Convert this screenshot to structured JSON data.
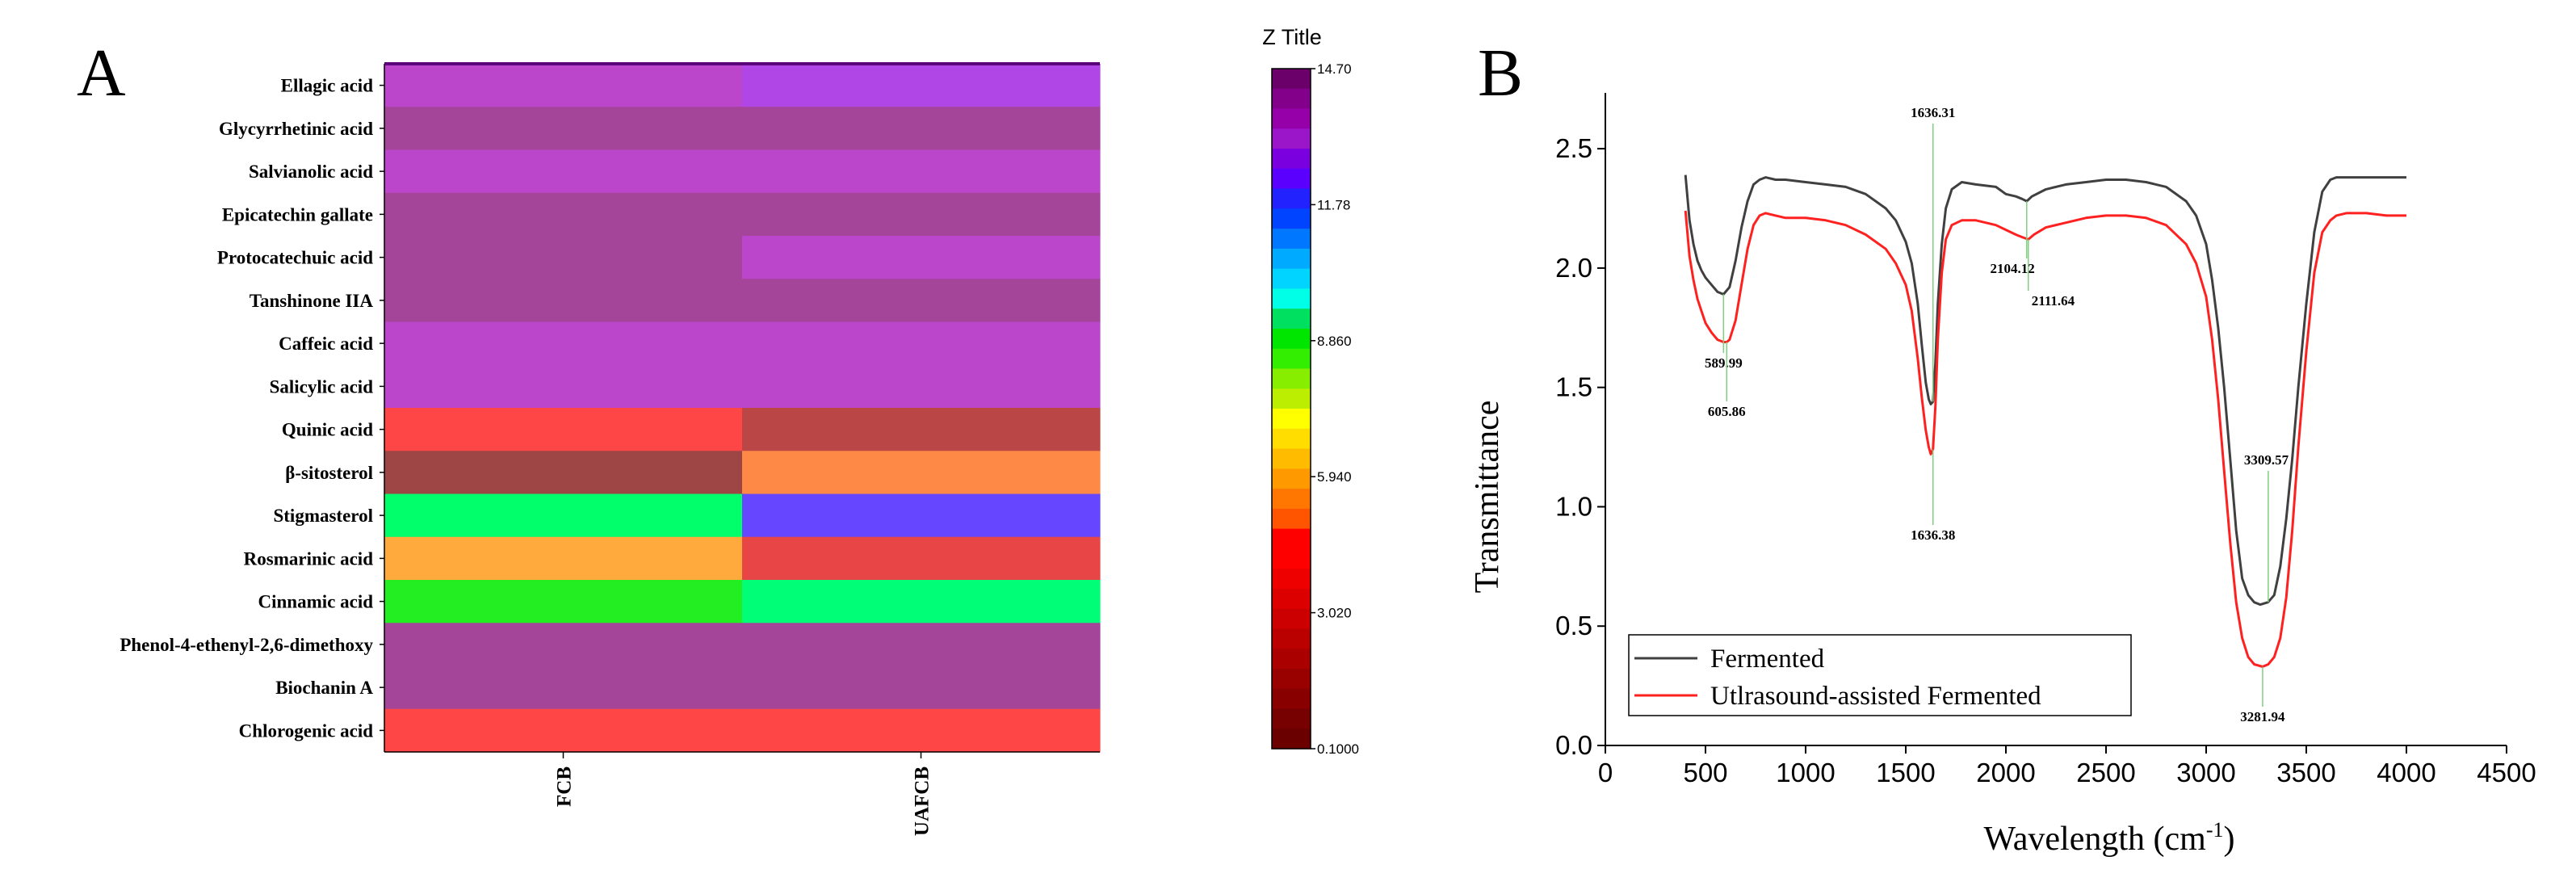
{
  "chart_data": [
    {
      "type": "heatmap",
      "panel_label": "A",
      "rows": [
        "Ellagic acid",
        "Glycyrrhetinic acid",
        "Salvianolic acid",
        "Epicatechin gallate",
        "Protocatechuic acid",
        "Tanshinone IIA",
        "Caffeic acid",
        "Salicylic acid",
        "Quinic acid",
        "β-sitosterol",
        "Stigmasterol",
        "Rosmarinic acid",
        "Cinnamic acid",
        "Phenol-4-ethenyl-2,6-dimethoxy",
        "Biochanin A",
        "Chlorogenic acid"
      ],
      "columns": [
        "FCB",
        "UAFCB"
      ],
      "cell_colors": [
        [
          "#bb46cc",
          "#b146e6"
        ],
        [
          "#a54599",
          "#a54599"
        ],
        [
          "#bb46cc",
          "#bb46cc"
        ],
        [
          "#a54599",
          "#a54599"
        ],
        [
          "#a54599",
          "#bb46cc"
        ],
        [
          "#a54599",
          "#a54599"
        ],
        [
          "#bb46cc",
          "#bb46cc"
        ],
        [
          "#bb46cc",
          "#bb46cc"
        ],
        [
          "#fe4646",
          "#ba4646"
        ],
        [
          "#9e4646",
          "#fe8846"
        ],
        [
          "#00ff6a",
          "#6646ff"
        ],
        [
          "#ffaa3c",
          "#e84646"
        ],
        [
          "#22ee22",
          "#00ff76"
        ],
        [
          "#a54599",
          "#a54599"
        ],
        [
          "#a54599",
          "#a54599"
        ],
        [
          "#ff4646",
          "#ff4646"
        ]
      ],
      "colorbar": {
        "title": "Z Title",
        "min": 0.1,
        "max": 14.7,
        "tick_labels": [
          "14.70",
          "11.78",
          "8.860",
          "5.940",
          "3.020",
          "0.1000"
        ],
        "tick_values": [
          14.7,
          11.78,
          8.86,
          5.94,
          3.02,
          0.1
        ],
        "colors": [
          "#6b006b",
          "#82008a",
          "#9500a8",
          "#9b15c9",
          "#7a00e0",
          "#5a00ff",
          "#2222ff",
          "#0044ff",
          "#0077ff",
          "#00aaff",
          "#00d4ff",
          "#00ffe6",
          "#00e060",
          "#00e600",
          "#33ee00",
          "#88ee00",
          "#bbee00",
          "#ffff00",
          "#ffdd00",
          "#ffbb00",
          "#ff9900",
          "#ff7700",
          "#ff5500",
          "#ff0000",
          "#ff0000",
          "#ee0000",
          "#dd0000",
          "#cc0000",
          "#bb0000",
          "#aa0000",
          "#990000",
          "#880000",
          "#770000",
          "#6a0000"
        ]
      }
    },
    {
      "type": "line",
      "panel_label": "B",
      "xlabel": "Wavelength (cm",
      "xlabel_sup": "-1",
      "xlabel_end": ")",
      "ylabel": "Transmittance",
      "xlim": [
        0,
        4500
      ],
      "ylim": [
        0.0,
        2.7
      ],
      "xticks": [
        0,
        500,
        1000,
        1500,
        2000,
        2500,
        3000,
        3500,
        4000,
        4500
      ],
      "yticks": [
        0.0,
        0.5,
        1.0,
        1.5,
        2.0,
        2.5
      ],
      "xtick_labels": [
        "0",
        "500",
        "1000",
        "1500",
        "2000",
        "2500",
        "3000",
        "3500",
        "4000",
        "4500"
      ],
      "ytick_labels": [
        "0.0",
        "0.5",
        "1.0",
        "1.5",
        "2.0",
        "2.5"
      ],
      "series": [
        {
          "name": "Fermented",
          "color": "#404040",
          "x": [
            400,
            420,
            440,
            460,
            480,
            500,
            530,
            560,
            590,
            620,
            650,
            680,
            710,
            740,
            770,
            800,
            850,
            900,
            1000,
            1100,
            1200,
            1300,
            1400,
            1450,
            1500,
            1530,
            1560,
            1580,
            1600,
            1615,
            1625,
            1636,
            1648,
            1660,
            1680,
            1700,
            1730,
            1780,
            1850,
            1950,
            2000,
            2050,
            2080,
            2104,
            2130,
            2200,
            2300,
            2400,
            2500,
            2600,
            2700,
            2800,
            2900,
            2950,
            3000,
            3030,
            3060,
            3090,
            3120,
            3150,
            3180,
            3210,
            3240,
            3270,
            3309,
            3340,
            3370,
            3400,
            3430,
            3460,
            3500,
            3540,
            3580,
            3620,
            3650,
            3700,
            3800,
            3900,
            4000
          ],
          "y": [
            2.39,
            2.2,
            2.1,
            2.03,
            1.99,
            1.96,
            1.93,
            1.9,
            1.89,
            1.92,
            2.03,
            2.17,
            2.28,
            2.35,
            2.37,
            2.38,
            2.37,
            2.37,
            2.36,
            2.35,
            2.34,
            2.31,
            2.25,
            2.2,
            2.11,
            2.02,
            1.85,
            1.68,
            1.52,
            1.45,
            1.43,
            1.44,
            1.6,
            1.85,
            2.1,
            2.25,
            2.33,
            2.36,
            2.35,
            2.34,
            2.31,
            2.3,
            2.29,
            2.28,
            2.3,
            2.33,
            2.35,
            2.36,
            2.37,
            2.37,
            2.36,
            2.34,
            2.28,
            2.22,
            2.1,
            1.95,
            1.75,
            1.5,
            1.2,
            0.9,
            0.7,
            0.63,
            0.6,
            0.59,
            0.6,
            0.63,
            0.75,
            0.95,
            1.2,
            1.5,
            1.85,
            2.15,
            2.32,
            2.37,
            2.38,
            2.38,
            2.38,
            2.38,
            2.38
          ]
        },
        {
          "name": "Utlrasound-assisted Fermented",
          "color": "#ff2020",
          "x": [
            400,
            420,
            440,
            460,
            480,
            500,
            530,
            560,
            590,
            606,
            620,
            650,
            680,
            710,
            740,
            770,
            800,
            850,
            900,
            1000,
            1100,
            1200,
            1300,
            1400,
            1450,
            1500,
            1530,
            1560,
            1580,
            1600,
            1615,
            1625,
            1636,
            1648,
            1660,
            1680,
            1700,
            1730,
            1780,
            1850,
            1950,
            2000,
            2050,
            2080,
            2112,
            2140,
            2200,
            2300,
            2400,
            2500,
            2600,
            2700,
            2800,
            2900,
            2950,
            3000,
            3030,
            3060,
            3090,
            3120,
            3150,
            3180,
            3210,
            3240,
            3282,
            3310,
            3340,
            3370,
            3400,
            3430,
            3460,
            3500,
            3540,
            3580,
            3620,
            3650,
            3700,
            3800,
            3900,
            4000
          ],
          "y": [
            2.24,
            2.05,
            1.95,
            1.87,
            1.82,
            1.77,
            1.73,
            1.7,
            1.69,
            1.69,
            1.7,
            1.78,
            1.93,
            2.08,
            2.18,
            2.22,
            2.23,
            2.22,
            2.21,
            2.21,
            2.2,
            2.18,
            2.14,
            2.08,
            2.02,
            1.93,
            1.82,
            1.62,
            1.46,
            1.32,
            1.25,
            1.22,
            1.24,
            1.42,
            1.7,
            1.98,
            2.12,
            2.18,
            2.2,
            2.2,
            2.18,
            2.16,
            2.14,
            2.13,
            2.12,
            2.14,
            2.17,
            2.19,
            2.21,
            2.22,
            2.22,
            2.21,
            2.18,
            2.1,
            2.02,
            1.88,
            1.7,
            1.45,
            1.15,
            0.85,
            0.6,
            0.45,
            0.37,
            0.34,
            0.33,
            0.34,
            0.37,
            0.45,
            0.62,
            0.9,
            1.25,
            1.65,
            1.98,
            2.15,
            2.2,
            2.22,
            2.23,
            2.23,
            2.22,
            2.22
          ]
        }
      ],
      "annotations": [
        {
          "text": "1636.31",
          "x": 1636,
          "series": 0
        },
        {
          "text": "589.99",
          "x": 590,
          "series": 0
        },
        {
          "text": "605.86",
          "x": 606,
          "series": 1
        },
        {
          "text": "2104.12",
          "x": 2104,
          "series": 0
        },
        {
          "text": "2111.64",
          "x": 2112,
          "series": 1
        },
        {
          "text": "1636.38",
          "x": 1636,
          "series": 1
        },
        {
          "text": "3309.57",
          "x": 3310,
          "series": 0
        },
        {
          "text": "3281.94",
          "x": 3282,
          "series": 1
        }
      ],
      "legend_position": "bottom-left"
    }
  ]
}
